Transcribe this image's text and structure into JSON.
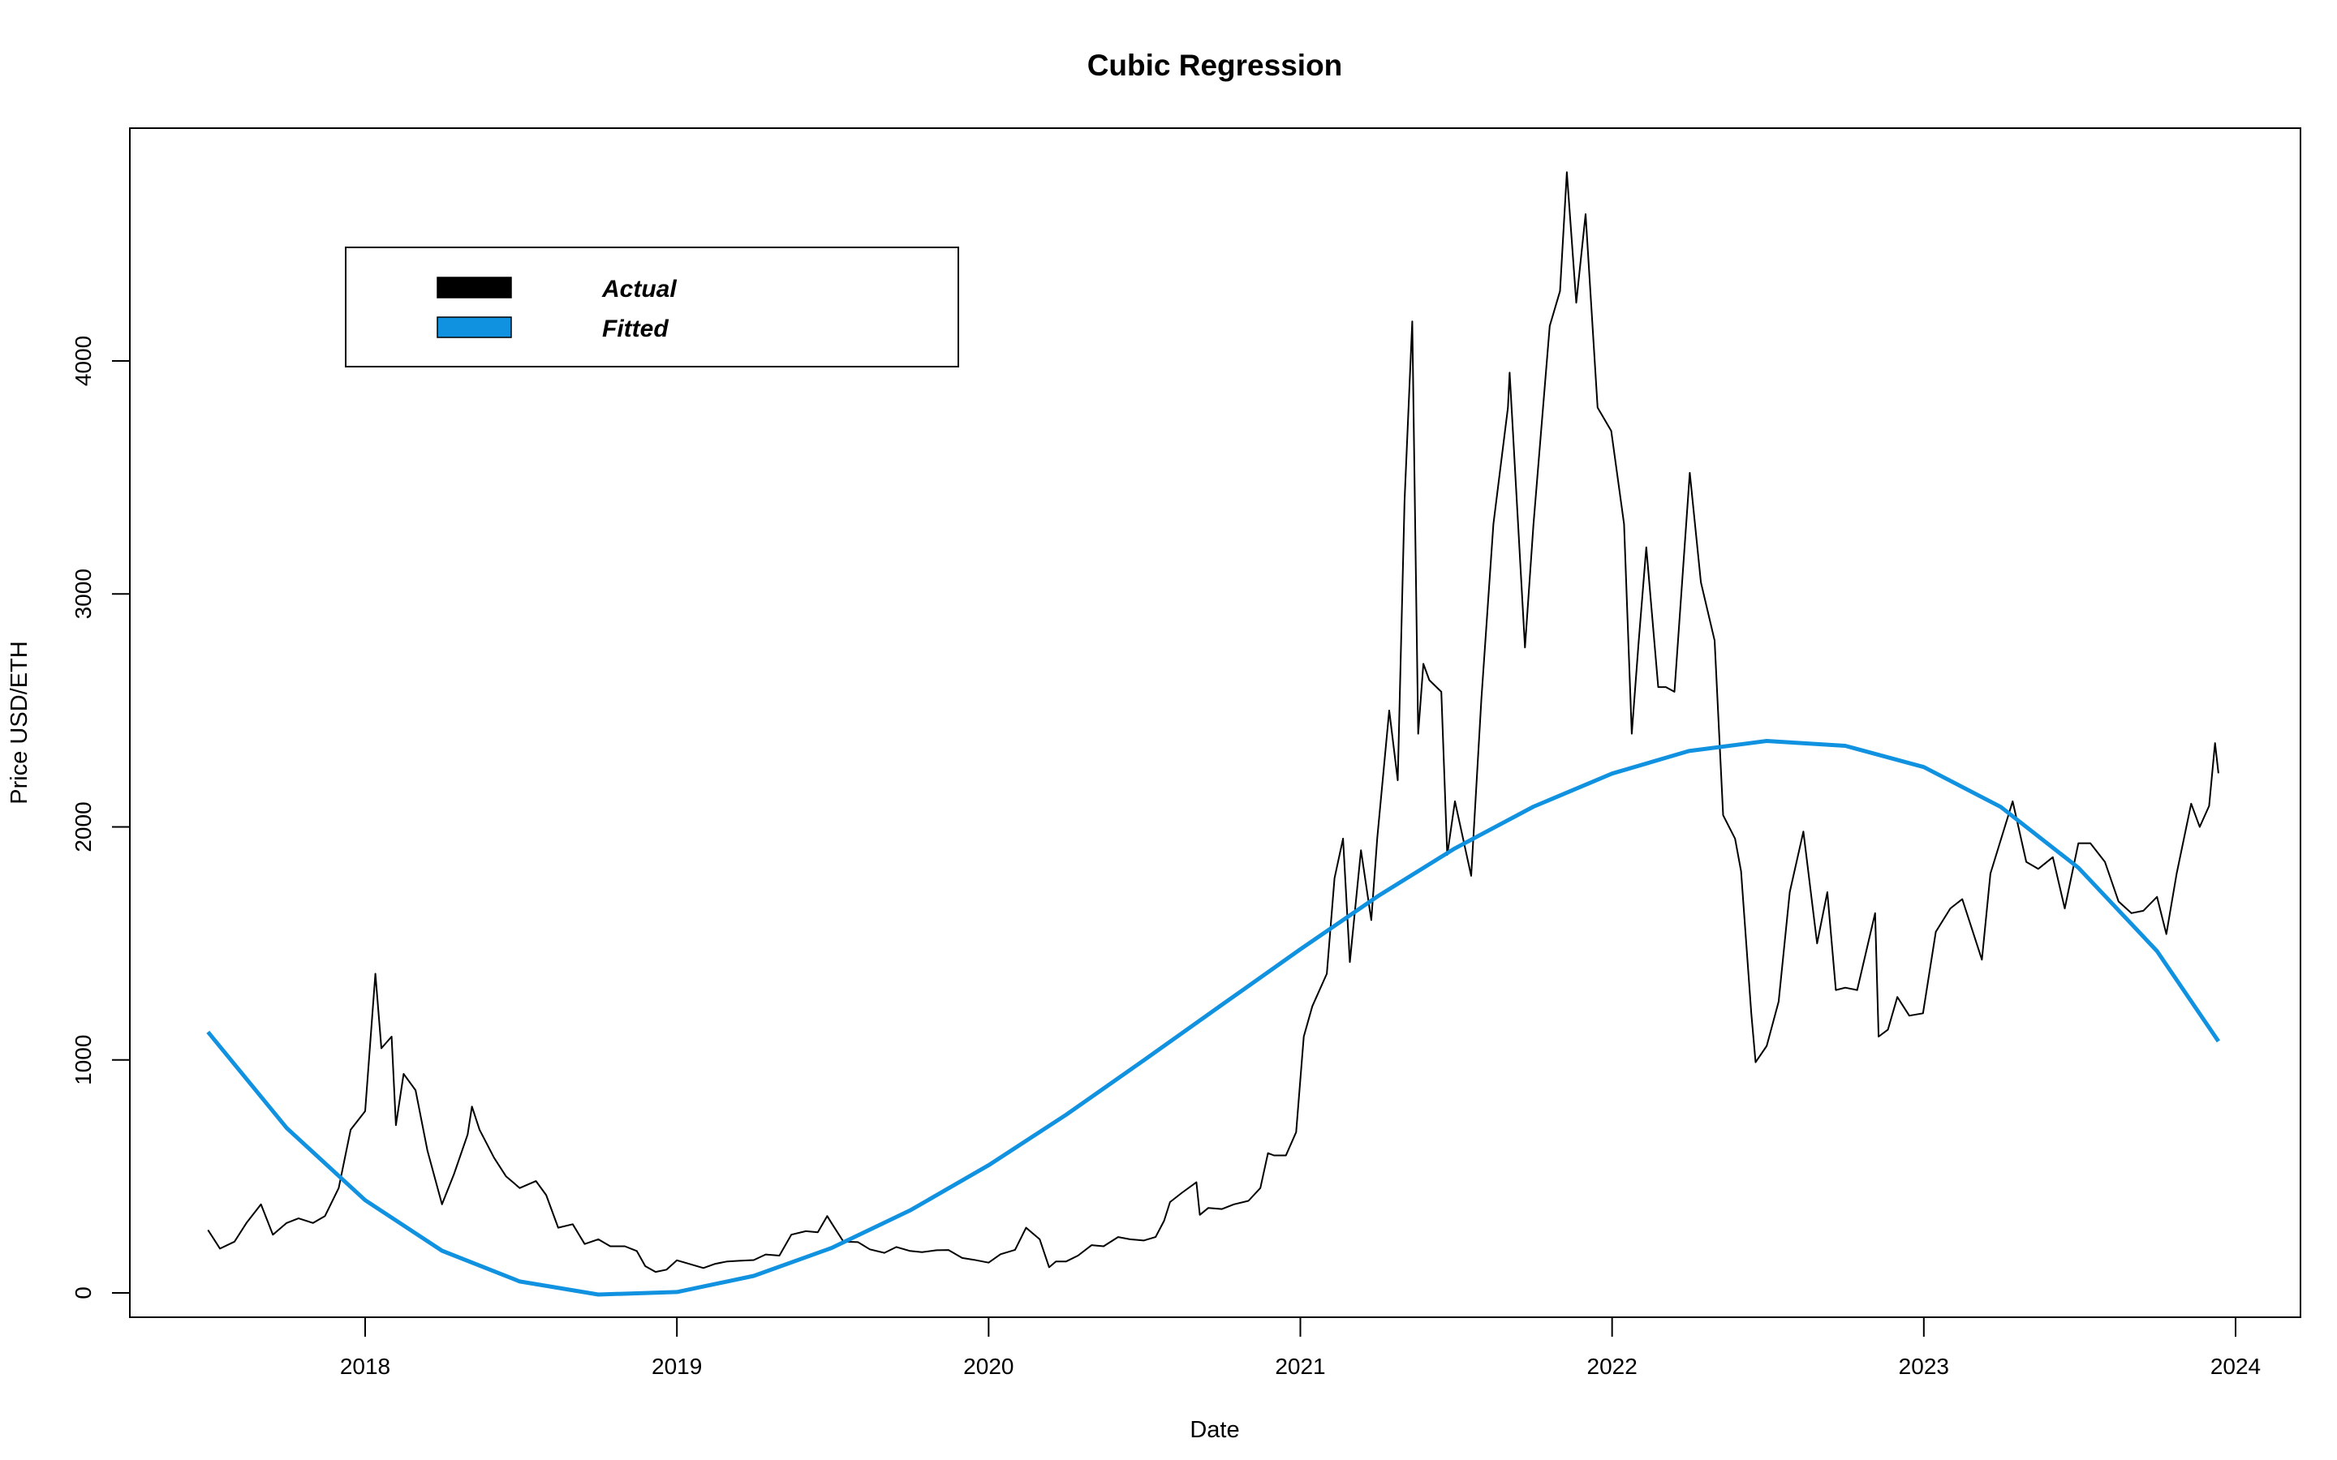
{
  "chart_data": {
    "type": "line",
    "title": "Cubic Regression",
    "xlabel": "Date",
    "ylabel": "Price USD/ETH",
    "xlim": [
      "2017-04-20",
      "2024-02-15"
    ],
    "ylim": [
      -100,
      5000
    ],
    "x_ticks": [
      "2018",
      "2019",
      "2020",
      "2021",
      "2022",
      "2023",
      "2024"
    ],
    "y_ticks": [
      0,
      1000,
      2000,
      3000,
      4000
    ],
    "y_tick_labels": [
      "0",
      "1000",
      "2000",
      "3000",
      "4000"
    ],
    "grid": false,
    "legend": {
      "placement": "top-left",
      "entries": [
        {
          "label": "Actual",
          "color": "#000000"
        },
        {
          "label": "Fitted",
          "color": "#1192E0"
        }
      ]
    },
    "series": [
      {
        "name": "Actual",
        "color": "#000000",
        "points": [
          [
            "2017-07-01",
            270
          ],
          [
            "2017-07-15",
            190
          ],
          [
            "2017-08-01",
            220
          ],
          [
            "2017-08-15",
            300
          ],
          [
            "2017-09-01",
            380
          ],
          [
            "2017-09-15",
            250
          ],
          [
            "2017-10-01",
            300
          ],
          [
            "2017-10-15",
            320
          ],
          [
            "2017-11-01",
            300
          ],
          [
            "2017-11-15",
            330
          ],
          [
            "2017-12-01",
            450
          ],
          [
            "2017-12-15",
            700
          ],
          [
            "2018-01-01",
            780
          ],
          [
            "2018-01-13",
            1370
          ],
          [
            "2018-01-20",
            1050
          ],
          [
            "2018-02-01",
            1100
          ],
          [
            "2018-02-06",
            720
          ],
          [
            "2018-02-15",
            940
          ],
          [
            "2018-03-01",
            870
          ],
          [
            "2018-03-15",
            610
          ],
          [
            "2018-04-01",
            380
          ],
          [
            "2018-04-15",
            510
          ],
          [
            "2018-05-01",
            680
          ],
          [
            "2018-05-06",
            800
          ],
          [
            "2018-05-15",
            700
          ],
          [
            "2018-06-01",
            580
          ],
          [
            "2018-06-15",
            500
          ],
          [
            "2018-07-01",
            450
          ],
          [
            "2018-07-20",
            480
          ],
          [
            "2018-08-01",
            420
          ],
          [
            "2018-08-15",
            280
          ],
          [
            "2018-09-01",
            295
          ],
          [
            "2018-09-15",
            210
          ],
          [
            "2018-10-01",
            230
          ],
          [
            "2018-10-15",
            200
          ],
          [
            "2018-11-01",
            200
          ],
          [
            "2018-11-15",
            180
          ],
          [
            "2018-11-25",
            115
          ],
          [
            "2018-12-07",
            90
          ],
          [
            "2018-12-20",
            100
          ],
          [
            "2019-01-01",
            140
          ],
          [
            "2019-01-15",
            125
          ],
          [
            "2019-02-01",
            107
          ],
          [
            "2019-02-15",
            125
          ],
          [
            "2019-03-01",
            135
          ],
          [
            "2019-03-15",
            138
          ],
          [
            "2019-04-01",
            141
          ],
          [
            "2019-04-15",
            165
          ],
          [
            "2019-05-01",
            160
          ],
          [
            "2019-05-15",
            250
          ],
          [
            "2019-06-01",
            265
          ],
          [
            "2019-06-15",
            260
          ],
          [
            "2019-06-26",
            330
          ],
          [
            "2019-07-01",
            300
          ],
          [
            "2019-07-15",
            220
          ],
          [
            "2019-08-01",
            218
          ],
          [
            "2019-08-15",
            187
          ],
          [
            "2019-09-01",
            172
          ],
          [
            "2019-09-15",
            197
          ],
          [
            "2019-10-01",
            180
          ],
          [
            "2019-10-15",
            175
          ],
          [
            "2019-11-01",
            183
          ],
          [
            "2019-11-15",
            184
          ],
          [
            "2019-12-01",
            150
          ],
          [
            "2019-12-15",
            142
          ],
          [
            "2020-01-01",
            130
          ],
          [
            "2020-01-15",
            166
          ],
          [
            "2020-02-01",
            185
          ],
          [
            "2020-02-14",
            280
          ],
          [
            "2020-03-01",
            230
          ],
          [
            "2020-03-12",
            110
          ],
          [
            "2020-03-20",
            135
          ],
          [
            "2020-04-01",
            135
          ],
          [
            "2020-04-15",
            160
          ],
          [
            "2020-05-01",
            205
          ],
          [
            "2020-05-15",
            200
          ],
          [
            "2020-06-01",
            240
          ],
          [
            "2020-06-15",
            230
          ],
          [
            "2020-07-01",
            225
          ],
          [
            "2020-07-15",
            240
          ],
          [
            "2020-07-25",
            310
          ],
          [
            "2020-08-01",
            390
          ],
          [
            "2020-08-15",
            430
          ],
          [
            "2020-09-01",
            475
          ],
          [
            "2020-09-05",
            335
          ],
          [
            "2020-09-15",
            365
          ],
          [
            "2020-10-01",
            360
          ],
          [
            "2020-10-15",
            380
          ],
          [
            "2020-11-01",
            395
          ],
          [
            "2020-11-15",
            450
          ],
          [
            "2020-11-24",
            600
          ],
          [
            "2020-12-01",
            590
          ],
          [
            "2020-12-15",
            590
          ],
          [
            "2020-12-27",
            690
          ],
          [
            "2021-01-05",
            1100
          ],
          [
            "2021-01-15",
            1230
          ],
          [
            "2021-02-01",
            1370
          ],
          [
            "2021-02-10",
            1780
          ],
          [
            "2021-02-20",
            1950
          ],
          [
            "2021-02-28",
            1420
          ],
          [
            "2021-03-13",
            1900
          ],
          [
            "2021-03-25",
            1600
          ],
          [
            "2021-04-01",
            1950
          ],
          [
            "2021-04-15",
            2500
          ],
          [
            "2021-04-25",
            2200
          ],
          [
            "2021-05-03",
            3400
          ],
          [
            "2021-05-12",
            4170
          ],
          [
            "2021-05-19",
            2400
          ],
          [
            "2021-05-25",
            2700
          ],
          [
            "2021-06-01",
            2630
          ],
          [
            "2021-06-15",
            2580
          ],
          [
            "2021-06-22",
            1880
          ],
          [
            "2021-07-01",
            2110
          ],
          [
            "2021-07-20",
            1790
          ],
          [
            "2021-08-01",
            2550
          ],
          [
            "2021-08-15",
            3300
          ],
          [
            "2021-09-01",
            3800
          ],
          [
            "2021-09-03",
            3950
          ],
          [
            "2021-09-21",
            2770
          ],
          [
            "2021-10-01",
            3300
          ],
          [
            "2021-10-20",
            4150
          ],
          [
            "2021-11-01",
            4300
          ],
          [
            "2021-11-09",
            4810
          ],
          [
            "2021-11-20",
            4250
          ],
          [
            "2021-12-01",
            4630
          ],
          [
            "2021-12-15",
            3800
          ],
          [
            "2021-12-31",
            3700
          ],
          [
            "2022-01-15",
            3300
          ],
          [
            "2022-01-24",
            2400
          ],
          [
            "2022-02-01",
            2790
          ],
          [
            "2022-02-10",
            3200
          ],
          [
            "2022-02-24",
            2600
          ],
          [
            "2022-03-05",
            2600
          ],
          [
            "2022-03-15",
            2580
          ],
          [
            "2022-04-02",
            3520
          ],
          [
            "2022-04-15",
            3050
          ],
          [
            "2022-05-01",
            2800
          ],
          [
            "2022-05-11",
            2050
          ],
          [
            "2022-05-25",
            1950
          ],
          [
            "2022-06-01",
            1810
          ],
          [
            "2022-06-13",
            1200
          ],
          [
            "2022-06-18",
            990
          ],
          [
            "2022-07-01",
            1060
          ],
          [
            "2022-07-15",
            1250
          ],
          [
            "2022-07-28",
            1720
          ],
          [
            "2022-08-13",
            1980
          ],
          [
            "2022-08-29",
            1500
          ],
          [
            "2022-09-10",
            1720
          ],
          [
            "2022-09-20",
            1300
          ],
          [
            "2022-10-01",
            1310
          ],
          [
            "2022-10-15",
            1300
          ],
          [
            "2022-11-05",
            1630
          ],
          [
            "2022-11-09",
            1100
          ],
          [
            "2022-11-20",
            1130
          ],
          [
            "2022-12-01",
            1270
          ],
          [
            "2022-12-15",
            1190
          ],
          [
            "2022-12-31",
            1200
          ],
          [
            "2023-01-15",
            1550
          ],
          [
            "2023-02-01",
            1650
          ],
          [
            "2023-02-15",
            1690
          ],
          [
            "2023-03-10",
            1430
          ],
          [
            "2023-03-20",
            1800
          ],
          [
            "2023-04-15",
            2110
          ],
          [
            "2023-05-01",
            1850
          ],
          [
            "2023-05-15",
            1820
          ],
          [
            "2023-06-01",
            1870
          ],
          [
            "2023-06-15",
            1650
          ],
          [
            "2023-07-01",
            1930
          ],
          [
            "2023-07-15",
            1930
          ],
          [
            "2023-08-01",
            1850
          ],
          [
            "2023-08-17",
            1680
          ],
          [
            "2023-09-01",
            1630
          ],
          [
            "2023-09-15",
            1640
          ],
          [
            "2023-10-01",
            1700
          ],
          [
            "2023-10-12",
            1540
          ],
          [
            "2023-10-24",
            1800
          ],
          [
            "2023-11-10",
            2100
          ],
          [
            "2023-11-20",
            2000
          ],
          [
            "2023-12-01",
            2090
          ],
          [
            "2023-12-08",
            2360
          ],
          [
            "2023-12-12",
            2230
          ]
        ]
      },
      {
        "name": "Fitted",
        "color": "#1192E0",
        "points": [
          [
            "2017-07-01",
            1120
          ],
          [
            "2017-10-01",
            708
          ],
          [
            "2018-01-01",
            398
          ],
          [
            "2018-04-01",
            181
          ],
          [
            "2018-07-01",
            49
          ],
          [
            "2018-10-01",
            -7
          ],
          [
            "2019-01-01",
            4
          ],
          [
            "2019-04-01",
            73
          ],
          [
            "2019-07-01",
            193
          ],
          [
            "2019-10-01",
            354
          ],
          [
            "2020-01-01",
            548
          ],
          [
            "2020-04-01",
            765
          ],
          [
            "2020-07-01",
            998
          ],
          [
            "2020-10-01",
            1237
          ],
          [
            "2021-01-01",
            1475
          ],
          [
            "2021-04-01",
            1701
          ],
          [
            "2021-07-01",
            1908
          ],
          [
            "2021-10-01",
            2087
          ],
          [
            "2022-01-01",
            2229
          ],
          [
            "2022-04-01",
            2326
          ],
          [
            "2022-07-01",
            2369
          ],
          [
            "2022-10-01",
            2348
          ],
          [
            "2023-01-01",
            2257
          ],
          [
            "2023-04-01",
            2086
          ],
          [
            "2023-07-01",
            1825
          ],
          [
            "2023-10-01",
            1467
          ],
          [
            "2023-12-12",
            1080
          ]
        ]
      }
    ]
  }
}
